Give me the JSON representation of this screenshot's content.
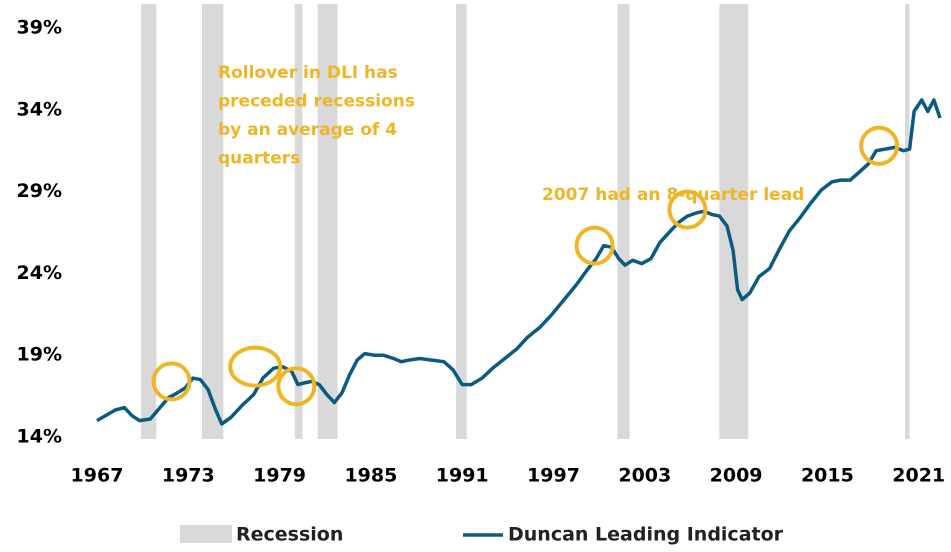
{
  "chart_data": {
    "type": "line",
    "x": [
      1967.0,
      1968.2,
      1968.8,
      1969.3,
      1969.8,
      1970.5,
      1971.0,
      1971.7,
      1972.3,
      1972.8,
      1973.3,
      1973.8,
      1974.3,
      1974.8,
      1975.2,
      1975.8,
      1976.5,
      1977.3,
      1977.9,
      1978.6,
      1979.2,
      1979.8,
      1980.2,
      1980.6,
      1981.1,
      1981.6,
      1982.1,
      1982.6,
      1983.1,
      1983.6,
      1984.1,
      1984.6,
      1985.2,
      1985.8,
      1986.5,
      1987.0,
      1987.5,
      1988.2,
      1989.0,
      1989.8,
      1990.4,
      1991.0,
      1991.6,
      1992.3,
      1993.0,
      1993.8,
      1994.6,
      1995.3,
      1996.1,
      1996.9,
      1997.7,
      1998.5,
      1999.2,
      1999.8,
      2000.3,
      2000.8,
      2001.3,
      2001.7,
      2002.2,
      2002.8,
      2003.4,
      2004.0,
      2004.6,
      2005.2,
      2005.8,
      2006.4,
      2006.9,
      2007.4,
      2007.9,
      2008.4,
      2008.8,
      2009.1,
      2009.4,
      2009.9,
      2010.5,
      2011.2,
      2011.8,
      2012.5,
      2013.2,
      2013.9,
      2014.6,
      2015.3,
      2015.9,
      2016.5,
      2017.1,
      2017.7,
      2018.2,
      2018.8,
      2019.4,
      2020.0,
      2020.4,
      2020.7,
      2021.2,
      2021.6,
      2022.0,
      2022.4
    ],
    "series": [
      {
        "name": "Duncan Leading Indicator",
        "color": "#0b5a80",
        "values": [
          15.0,
          15.65,
          15.8,
          15.3,
          15.0,
          15.1,
          15.65,
          16.4,
          16.7,
          17.0,
          17.6,
          17.5,
          16.9,
          15.65,
          14.8,
          15.2,
          15.9,
          16.6,
          17.6,
          18.2,
          18.3,
          18.0,
          17.2,
          17.3,
          17.4,
          17.2,
          16.6,
          16.1,
          16.7,
          17.8,
          18.7,
          19.1,
          19.0,
          19.0,
          18.8,
          18.6,
          18.7,
          18.8,
          18.7,
          18.6,
          18.1,
          17.2,
          17.2,
          17.6,
          18.2,
          18.8,
          19.4,
          20.1,
          20.7,
          21.5,
          22.4,
          23.3,
          24.2,
          24.9,
          25.7,
          25.6,
          24.9,
          24.5,
          24.8,
          24.6,
          24.9,
          25.9,
          26.5,
          27.1,
          27.5,
          27.7,
          27.8,
          27.6,
          27.5,
          26.9,
          25.4,
          23.0,
          22.4,
          22.8,
          23.8,
          24.3,
          25.4,
          26.6,
          27.4,
          28.3,
          29.1,
          29.6,
          29.7,
          29.7,
          30.2,
          30.7,
          31.5,
          31.6,
          31.7,
          31.5,
          31.6,
          33.9,
          34.6,
          33.9,
          34.6,
          33.5
        ]
      }
    ],
    "recessions": {
      "name": "Recession",
      "color": "#d9d9d9",
      "periods": [
        [
          1969.9,
          1970.9
        ],
        [
          1973.9,
          1975.3
        ],
        [
          1980.0,
          1980.5
        ],
        [
          1981.5,
          1982.8
        ],
        [
          1990.6,
          1991.3
        ],
        [
          2001.2,
          2002.0
        ],
        [
          2007.9,
          2009.8
        ],
        [
          2020.1,
          2020.4
        ]
      ]
    },
    "xlim": [
      1967,
      2022.4
    ],
    "xticks": [
      1967,
      1973,
      1979,
      1985,
      1991,
      1997,
      2003,
      2009,
      2015,
      2021
    ],
    "ylim": [
      14,
      39
    ],
    "yticks": [
      {
        "value": 14,
        "label": "14%"
      },
      {
        "value": 19,
        "label": "19%"
      },
      {
        "value": 24,
        "label": "24%"
      },
      {
        "value": 29,
        "label": "29%"
      },
      {
        "value": 34,
        "label": "34%"
      },
      {
        "value": 39,
        "label": "39%"
      }
    ],
    "grid": false,
    "legend": "bottom",
    "annotation_color": "#efb526",
    "annotations": [
      [
        "Rollover in DLI has",
        "preceded recessions",
        "by an average of 4",
        "quarters"
      ],
      [
        "2007 had an 8-quarter lead"
      ]
    ],
    "highlights": [
      {
        "x": 1971.9,
        "y": 17.4
      },
      {
        "x": 1977.4,
        "y": 18.3
      },
      {
        "x": 1980.1,
        "y": 17.1
      },
      {
        "x": 1999.7,
        "y": 25.7
      },
      {
        "x": 2005.8,
        "y": 27.9
      },
      {
        "x": 2018.4,
        "y": 31.8
      }
    ]
  }
}
